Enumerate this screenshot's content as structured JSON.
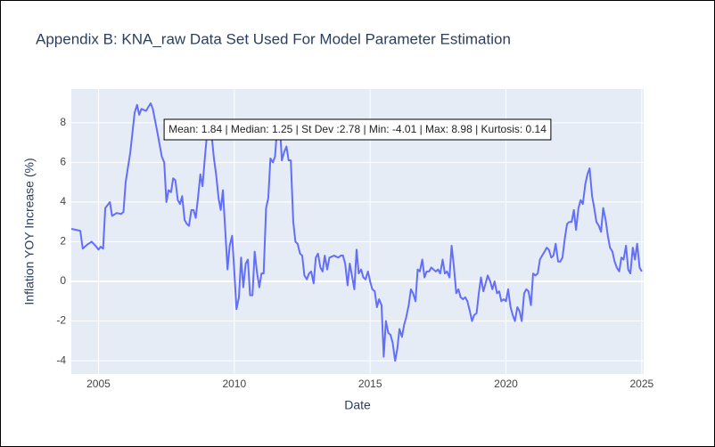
{
  "chart_data": {
    "type": "line",
    "title": "Appendix B: KNA_raw Data Set Used For Model Parameter Estimation",
    "x_label": "Date",
    "y_label": "Inflation YOY Increase (%)",
    "annotation": "Mean: 1.84 | Median: 1.25 | St Dev :2.78 | Min: -4.01 | Max: 8.98 | Kurtosis: 0.14",
    "x": [
      2004.0,
      2004.17,
      2004.33,
      2004.42,
      2004.58,
      2004.75,
      2004.92,
      2005.0,
      2005.08,
      2005.17,
      2005.25,
      2005.42,
      2005.5,
      2005.67,
      2005.83,
      2005.92,
      2006.0,
      2006.17,
      2006.33,
      2006.42,
      2006.5,
      2006.58,
      2006.75,
      2006.92,
      2007.0,
      2007.17,
      2007.33,
      2007.42,
      2007.5,
      2007.58,
      2007.67,
      2007.75,
      2007.83,
      2007.92,
      2008.0,
      2008.08,
      2008.17,
      2008.25,
      2008.33,
      2008.42,
      2008.5,
      2008.58,
      2008.67,
      2008.75,
      2008.83,
      2008.92,
      2009.0,
      2009.08,
      2009.17,
      2009.25,
      2009.33,
      2009.42,
      2009.5,
      2009.58,
      2009.67,
      2009.75,
      2009.83,
      2009.92,
      2010.0,
      2010.08,
      2010.17,
      2010.25,
      2010.33,
      2010.42,
      2010.5,
      2010.58,
      2010.67,
      2010.75,
      2010.83,
      2010.92,
      2011.0,
      2011.08,
      2011.17,
      2011.25,
      2011.33,
      2011.42,
      2011.5,
      2011.58,
      2011.67,
      2011.75,
      2011.83,
      2011.92,
      2012.0,
      2012.08,
      2012.17,
      2012.25,
      2012.33,
      2012.42,
      2012.5,
      2012.58,
      2012.67,
      2012.75,
      2012.83,
      2012.92,
      2013.0,
      2013.08,
      2013.17,
      2013.25,
      2013.33,
      2013.42,
      2013.5,
      2013.67,
      2013.83,
      2013.92,
      2014.0,
      2014.08,
      2014.17,
      2014.25,
      2014.33,
      2014.42,
      2014.5,
      2014.58,
      2014.67,
      2014.75,
      2014.83,
      2014.92,
      2015.0,
      2015.08,
      2015.17,
      2015.25,
      2015.33,
      2015.42,
      2015.5,
      2015.58,
      2015.67,
      2015.75,
      2015.83,
      2015.92,
      2016.0,
      2016.08,
      2016.17,
      2016.25,
      2016.33,
      2016.42,
      2016.5,
      2016.58,
      2016.67,
      2016.75,
      2016.83,
      2016.92,
      2017.0,
      2017.08,
      2017.17,
      2017.25,
      2017.33,
      2017.42,
      2017.5,
      2017.58,
      2017.67,
      2017.75,
      2017.83,
      2017.92,
      2018.0,
      2018.08,
      2018.17,
      2018.25,
      2018.33,
      2018.42,
      2018.5,
      2018.58,
      2018.67,
      2018.75,
      2018.83,
      2018.92,
      2019.0,
      2019.08,
      2019.17,
      2019.25,
      2019.33,
      2019.42,
      2019.5,
      2019.58,
      2019.67,
      2019.75,
      2019.83,
      2019.92,
      2020.0,
      2020.08,
      2020.17,
      2020.25,
      2020.33,
      2020.42,
      2020.5,
      2020.58,
      2020.67,
      2020.75,
      2020.83,
      2020.92,
      2021.0,
      2021.08,
      2021.17,
      2021.25,
      2021.33,
      2021.42,
      2021.5,
      2021.58,
      2021.67,
      2021.75,
      2021.83,
      2021.92,
      2022.0,
      2022.08,
      2022.17,
      2022.25,
      2022.33,
      2022.42,
      2022.5,
      2022.58,
      2022.67,
      2022.75,
      2022.83,
      2022.92,
      2023.0,
      2023.08,
      2023.17,
      2023.25,
      2023.33,
      2023.42,
      2023.5,
      2023.58,
      2023.67,
      2023.75,
      2023.83,
      2023.92,
      2024.0,
      2024.08,
      2024.17,
      2024.25,
      2024.33,
      2024.42,
      2024.5,
      2024.58,
      2024.67,
      2024.75,
      2024.83,
      2024.92,
      2025.0
    ],
    "values": [
      2.65,
      2.6,
      2.55,
      1.65,
      1.85,
      2.0,
      1.75,
      1.6,
      1.75,
      1.65,
      3.7,
      4.0,
      3.3,
      3.45,
      3.4,
      3.5,
      5.0,
      6.5,
      8.5,
      8.9,
      8.4,
      8.7,
      8.6,
      8.98,
      8.7,
      7.5,
      6.3,
      6.0,
      4.0,
      4.6,
      4.5,
      5.2,
      5.1,
      4.1,
      3.9,
      4.3,
      3.1,
      2.9,
      2.8,
      3.6,
      3.6,
      3.2,
      4.3,
      5.4,
      4.8,
      6.3,
      7.5,
      8.0,
      7.3,
      6.2,
      5.4,
      4.2,
      3.6,
      4.6,
      2.5,
      0.6,
      1.8,
      2.3,
      0.5,
      -1.4,
      -0.8,
      1.2,
      -0.3,
      0.9,
      1.1,
      -0.7,
      -0.7,
      1.5,
      0.5,
      -0.3,
      0.4,
      0.4,
      3.7,
      4.2,
      6.2,
      6.0,
      6.3,
      7.8,
      8.1,
      6.1,
      6.5,
      6.8,
      6.1,
      6.1,
      3.0,
      2.0,
      1.9,
      1.4,
      1.3,
      0.3,
      0.1,
      0.4,
      0.5,
      -0.1,
      1.2,
      1.4,
      0.7,
      0.5,
      1.3,
      0.6,
      1.2,
      1.3,
      1.2,
      1.3,
      1.3,
      0.9,
      -0.2,
      0.9,
      0.3,
      -0.4,
      1.6,
      0.4,
      0.6,
      0.2,
      0.1,
      0.5,
      0.0,
      -0.4,
      -0.5,
      -1.3,
      -0.9,
      -1.2,
      -3.8,
      -2.0,
      -2.6,
      -2.7,
      -3.1,
      -4.01,
      -3.4,
      -2.4,
      -2.8,
      -2.2,
      -1.8,
      -1.2,
      -0.4,
      -0.6,
      -1.0,
      0.6,
      0.5,
      1.1,
      0.2,
      0.5,
      0.5,
      0.7,
      0.6,
      0.5,
      0.6,
      0.4,
      1.1,
      0.4,
      0.5,
      0.2,
      1.8,
      0.8,
      -0.6,
      -0.4,
      -0.8,
      -0.9,
      -0.8,
      -1.0,
      -1.5,
      -2.0,
      -1.7,
      -1.6,
      -0.6,
      0.2,
      -0.5,
      -0.1,
      0.3,
      0.0,
      -0.4,
      0.0,
      -0.6,
      -0.5,
      -1.0,
      -0.9,
      -1.0,
      -0.4,
      -1.3,
      -1.7,
      -2.0,
      -1.3,
      -1.5,
      -2.0,
      -0.6,
      -0.4,
      -0.5,
      -1.2,
      0.4,
      0.3,
      0.4,
      1.1,
      1.3,
      1.5,
      1.7,
      1.6,
      1.2,
      1.3,
      1.9,
      1.0,
      1.0,
      1.2,
      2.2,
      2.9,
      3.0,
      3.0,
      3.6,
      2.6,
      3.7,
      4.1,
      3.9,
      4.9,
      5.4,
      5.7,
      4.3,
      3.7,
      3.0,
      2.8,
      2.5,
      3.7,
      3.1,
      2.3,
      1.7,
      1.5,
      1.0,
      0.7,
      0.5,
      1.2,
      1.1,
      1.8,
      0.6,
      0.4,
      1.7,
      1.1,
      1.9,
      0.7,
      0.5
    ],
    "color": "#636efa",
    "xlim": [
      2004.0,
      2025.07
    ],
    "ylim": [
      -4.67,
      9.7
    ],
    "xticks": [
      2005,
      2010,
      2015,
      2020,
      2025
    ],
    "yticks": [
      -4,
      -2,
      0,
      2,
      4,
      6,
      8
    ],
    "grid": true
  }
}
